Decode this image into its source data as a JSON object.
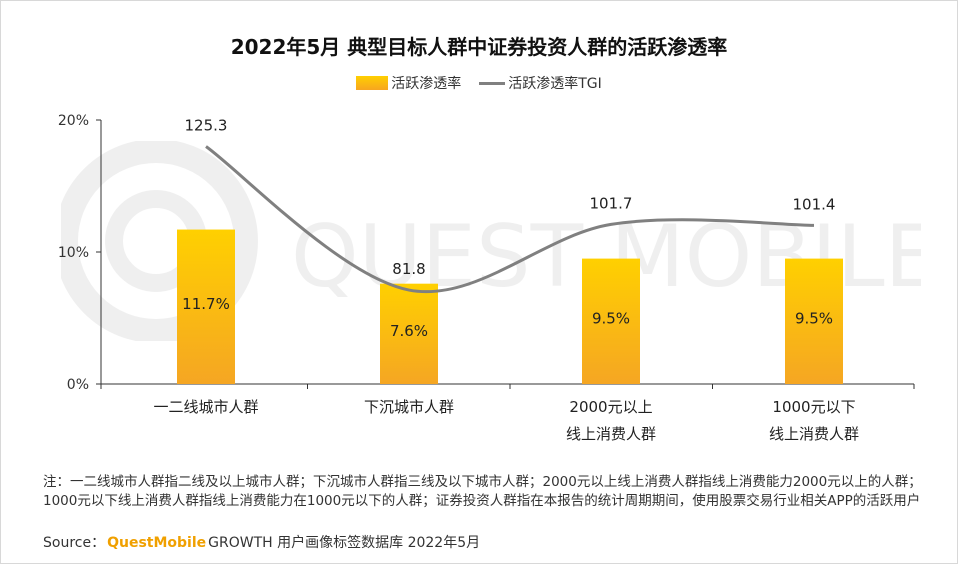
{
  "title": "2022年5月 典型目标人群中证券投资人群的活跃渗透率",
  "legend": {
    "bar_label": "活跃渗透率",
    "line_label": "活跃渗透率TGI"
  },
  "chart_data": {
    "type": "bar",
    "categories": [
      [
        "一二线城市人群"
      ],
      [
        "下沉城市人群"
      ],
      [
        "2000元以上",
        "线上消费人群"
      ],
      [
        "1000元以下",
        "线上消费人群"
      ]
    ],
    "series": [
      {
        "name": "活跃渗透率",
        "type": "bar",
        "values": [
          11.7,
          7.6,
          9.5,
          9.5
        ],
        "labels": [
          "11.7%",
          "7.6%",
          "9.5%",
          "9.5%"
        ]
      },
      {
        "name": "活跃渗透率TGI",
        "type": "line",
        "values": [
          125.3,
          81.8,
          101.7,
          101.4
        ],
        "labels": [
          "125.3",
          "81.8",
          "101.7",
          "101.4"
        ]
      }
    ],
    "yticks": [
      "0%",
      "10%",
      "20%"
    ],
    "ylim": [
      0,
      20
    ],
    "colors": {
      "bar_top": "#ffd000",
      "bar_bottom": "#f5a623",
      "line": "#808080"
    }
  },
  "footer": {
    "note": "注：一二线城市人群指二线及以上城市人群；下沉城市人群指三线及以下城市人群；2000元以上线上消费人群指线上消费能力2000元以上的人群；1000元以下线上消费人群指线上消费能力在1000元以下的人群；证券投资人群指在本报告的统计周期期间，使用股票交易行业相关APP的活跃用户",
    "source_prefix": "Source：",
    "source_brand": "QuestMobile",
    "source_suffix": "GROWTH 用户画像标签数据库 2022年5月"
  },
  "watermark": "QUEST MOBILE"
}
